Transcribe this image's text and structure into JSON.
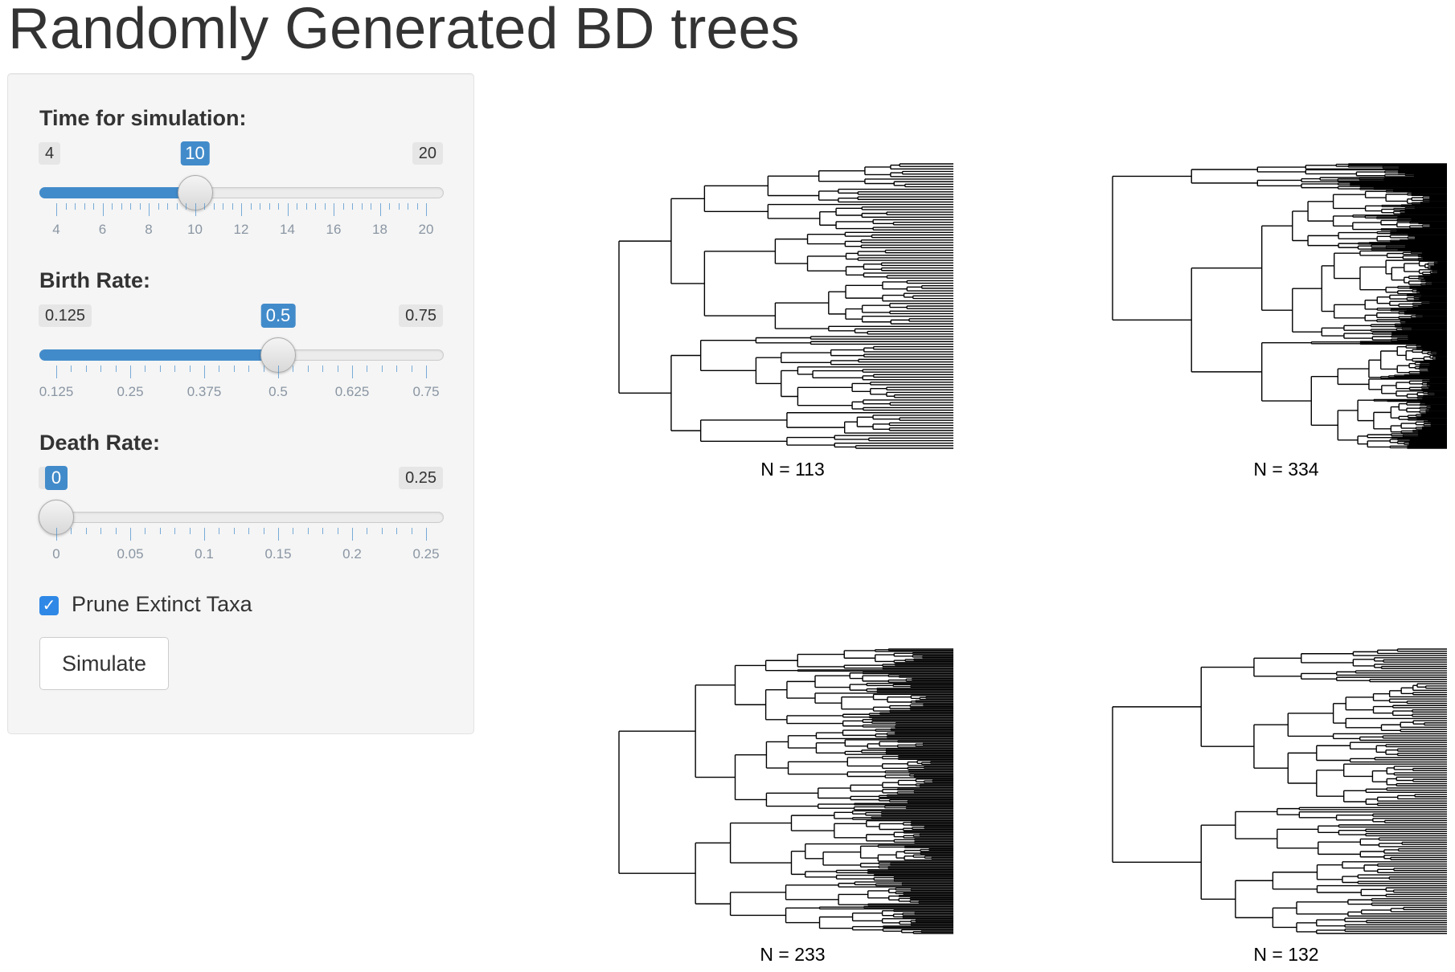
{
  "page": {
    "title": "Randomly Generated BD trees"
  },
  "sidebar": {
    "sliders": [
      {
        "id": "time",
        "label": "Time for simulation:",
        "min_label": "4",
        "max_label": "20",
        "value_label": "10",
        "min": 4,
        "max": 20,
        "value": 10,
        "tick_labels": [
          "4",
          "6",
          "8",
          "10",
          "12",
          "14",
          "16",
          "18",
          "20"
        ]
      },
      {
        "id": "birth",
        "label": "Birth Rate:",
        "min_label": "0.125",
        "max_label": "0.75",
        "value_label": "0.5",
        "min": 0.125,
        "max": 0.75,
        "value": 0.5,
        "tick_labels": [
          "0.125",
          "0.25",
          "0.375",
          "0.5",
          "0.625",
          "0.75"
        ]
      },
      {
        "id": "death",
        "label": "Death Rate:",
        "min_label": "0",
        "max_label": "0.25",
        "value_label": "0",
        "min": 0,
        "max": 0.25,
        "value": 0,
        "tick_labels": [
          "0",
          "0.05",
          "0.1",
          "0.15",
          "0.2",
          "0.25"
        ]
      }
    ],
    "prune_checkbox": {
      "label": "Prune Extinct Taxa",
      "checked": true
    },
    "simulate_button": {
      "label": "Simulate"
    }
  },
  "colors": {
    "accent": "#428bca",
    "checkbox": "#2f88e6",
    "panel_bg": "#f5f5f5",
    "tree_line": "#000000"
  },
  "trees": [
    {
      "caption": "N = 113",
      "tips": 113
    },
    {
      "caption": "N = 334",
      "tips": 334
    },
    {
      "caption": "N = 233",
      "tips": 233
    },
    {
      "caption": "N = 132",
      "tips": 132
    }
  ]
}
